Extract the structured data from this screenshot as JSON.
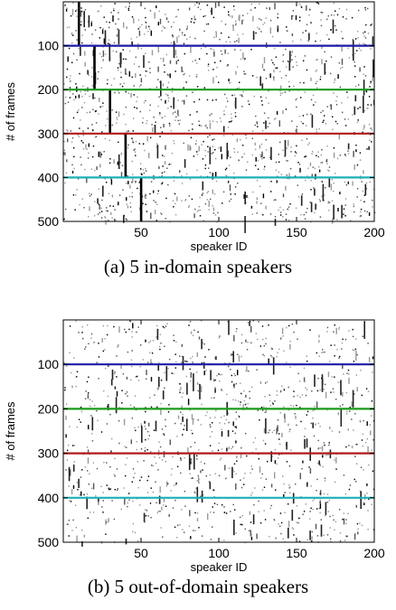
{
  "chart_data": [
    {
      "type": "scatter",
      "caption": "(a) 5 in-domain speakers",
      "xlabel": "speaker ID",
      "ylabel": "# of frames",
      "xlim": [
        0,
        200
      ],
      "ylim": [
        500,
        0
      ],
      "xticks": [
        50,
        100,
        150,
        200
      ],
      "yticks": [
        100,
        200,
        300,
        400,
        500
      ],
      "separators": [
        {
          "y": 100,
          "color": "#1a1aa6"
        },
        {
          "y": 200,
          "color": "#1a9a1a"
        },
        {
          "y": 300,
          "color": "#b01a1a"
        },
        {
          "y": 400,
          "color": "#1ab0b8"
        }
      ],
      "highlight_columns": [
        {
          "x": 10,
          "y_start": 0,
          "y_end": 100
        },
        {
          "x": 20,
          "y_start": 100,
          "y_end": 200
        },
        {
          "x": 30,
          "y_start": 200,
          "y_end": 300
        },
        {
          "x": 40,
          "y_start": 300,
          "y_end": 400
        },
        {
          "x": 50,
          "y_start": 400,
          "y_end": 500
        }
      ],
      "noise_seed": 17,
      "noise_points": 1400
    },
    {
      "type": "scatter",
      "caption": "(b) 5 out-of-domain speakers",
      "xlabel": "speaker ID",
      "ylabel": "# of frames",
      "xlim": [
        0,
        200
      ],
      "ylim": [
        500,
        0
      ],
      "xticks": [
        50,
        100,
        150,
        200
      ],
      "yticks": [
        100,
        200,
        300,
        400,
        500
      ],
      "separators": [
        {
          "y": 100,
          "color": "#1a1aa6"
        },
        {
          "y": 200,
          "color": "#1a9a1a"
        },
        {
          "y": 300,
          "color": "#b01a1a"
        },
        {
          "y": 400,
          "color": "#1ab0b8"
        }
      ],
      "highlight_columns": [],
      "noise_seed": 91,
      "noise_points": 1100
    }
  ]
}
